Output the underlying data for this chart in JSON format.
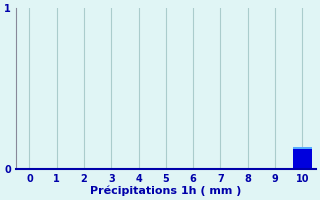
{
  "categories": [
    0,
    1,
    2,
    3,
    4,
    5,
    6,
    7,
    8,
    9,
    10
  ],
  "values": [
    0,
    0,
    0,
    0,
    0,
    0,
    0,
    0,
    0,
    0,
    0.14
  ],
  "bar_color": "#0000DD",
  "bar_top_color": "#55AAFF",
  "background_color": "#E0F5F5",
  "axis_color": "#0000AA",
  "grid_color": "#AACCCC",
  "left_spine_color": "#888899",
  "text_color": "#0000AA",
  "xlabel": "Précipitations 1h ( mm )",
  "xlim": [
    -0.5,
    10.5
  ],
  "ylim": [
    0,
    1
  ],
  "bar_width": 0.7,
  "tick_fontsize": 7,
  "xlabel_fontsize": 8
}
